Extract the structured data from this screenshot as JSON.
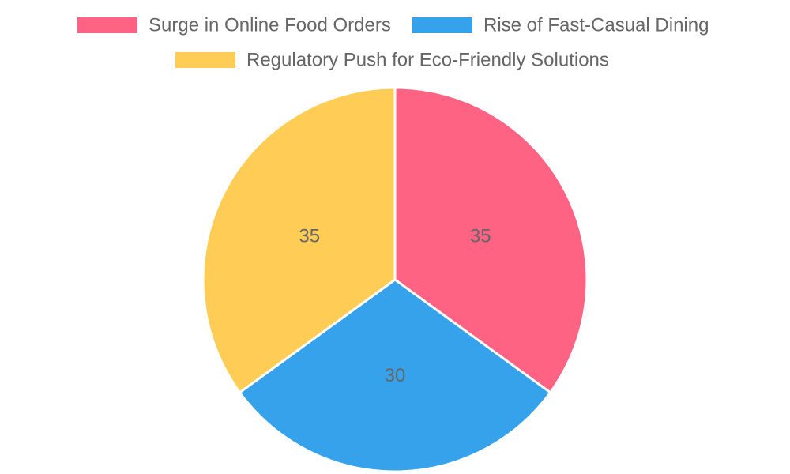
{
  "chart_data": {
    "type": "pie",
    "categories": [
      "Surge in Online Food Orders",
      "Rise of Fast-Casual Dining",
      "Regulatory Push for Eco-Friendly Solutions"
    ],
    "values": [
      35,
      30,
      35
    ],
    "colors": [
      "#ff6384",
      "#36a2eb",
      "#ffcd56"
    ],
    "legend_position": "top",
    "data_labels": true
  }
}
